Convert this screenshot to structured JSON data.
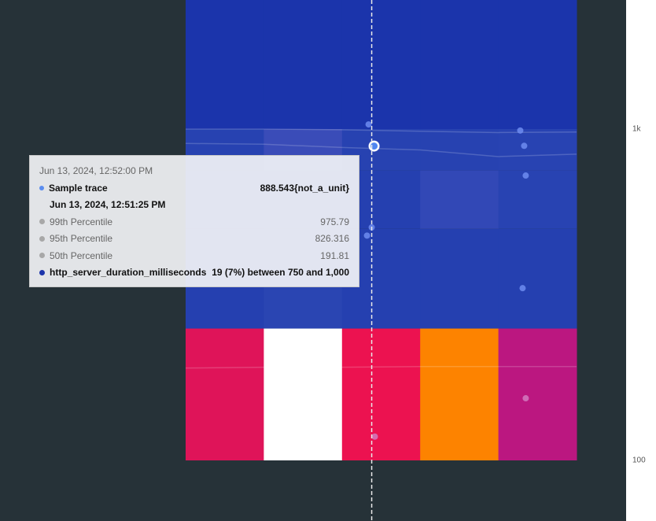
{
  "chart_data": {
    "type": "heatmap",
    "y_scale": "log",
    "y_ticks": [
      "1k",
      "100"
    ],
    "y_tick_values": [
      1000,
      100
    ],
    "y_range": [
      100,
      1400
    ],
    "y_buckets": [
      [
        100,
        250
      ],
      [
        250,
        500
      ],
      [
        500,
        750
      ],
      [
        750,
        1000
      ],
      [
        1000,
        1400
      ]
    ],
    "x_buckets": 5,
    "cell_colors": [
      [
        "#df1459",
        "#ffffff",
        "#ec1250",
        "#fd8300",
        "#bb1780"
      ],
      [
        "#2540b0",
        "#2a45b2",
        "#2540b0",
        "#2540b0",
        "#2540b0"
      ],
      [
        "#2540b0",
        "#2742b1",
        "#2540b0",
        "#3248b6",
        "#2843b2"
      ],
      [
        "#2742b1",
        "#3a4cb8",
        "#2742b1",
        "#2742b1",
        "#2843b2"
      ],
      [
        "#1b34ab",
        "#1b34ab",
        "#1b34ab",
        "#1b34ab",
        "#1b34ab"
      ]
    ],
    "percentile_lines": [
      {
        "name": "99th Percentile",
        "values": [
          1000,
          1000,
          995,
          985,
          976,
          980
        ]
      },
      {
        "name": "95th Percentile",
        "values": [
          905,
          900,
          880,
          865,
          826,
          840
        ]
      },
      {
        "name": "50th Percentile",
        "values": [
          190,
          191,
          191,
          192,
          192,
          192
        ]
      }
    ],
    "sample_points": [
      {
        "bucket": 2.34,
        "value": 1033
      },
      {
        "bucket": 4.28,
        "value": 990
      },
      {
        "bucket": 4.33,
        "value": 890
      },
      {
        "bucket": 4.35,
        "value": 724
      },
      {
        "bucket": 2.38,
        "value": 505
      },
      {
        "bucket": 2.32,
        "value": 477
      },
      {
        "bucket": 4.31,
        "value": 331
      },
      {
        "bucket": 4.35,
        "value": 154
      },
      {
        "bucket": 2.42,
        "value": 118
      }
    ],
    "selected_point": {
      "bucket": 2.42,
      "value": 888.543
    },
    "cursor_bucket": 2.38,
    "sample_color": "#6d8cf0",
    "sample_color_on_warm": "#d27ac0"
  },
  "tooltip": {
    "time": "Jun 13, 2024, 12:52:00 PM",
    "rows": [
      {
        "label": "Sample trace",
        "value": "888.543{not_a_unit}",
        "color": "#5b8def",
        "bold": true,
        "sub": "Jun 13, 2024, 12:51:25 PM"
      },
      {
        "label": "99th Percentile",
        "value": "975.79",
        "color": "#a8a8a8"
      },
      {
        "label": "95th Percentile",
        "value": "826.316",
        "color": "#a8a8a8"
      },
      {
        "label": "50th Percentile",
        "value": "191.81",
        "color": "#a8a8a8"
      },
      {
        "label": "http_server_duration_milliseconds",
        "value": "19 (7%) between 750 and 1,000",
        "color": "#1c35ab",
        "bold": true
      }
    ]
  }
}
